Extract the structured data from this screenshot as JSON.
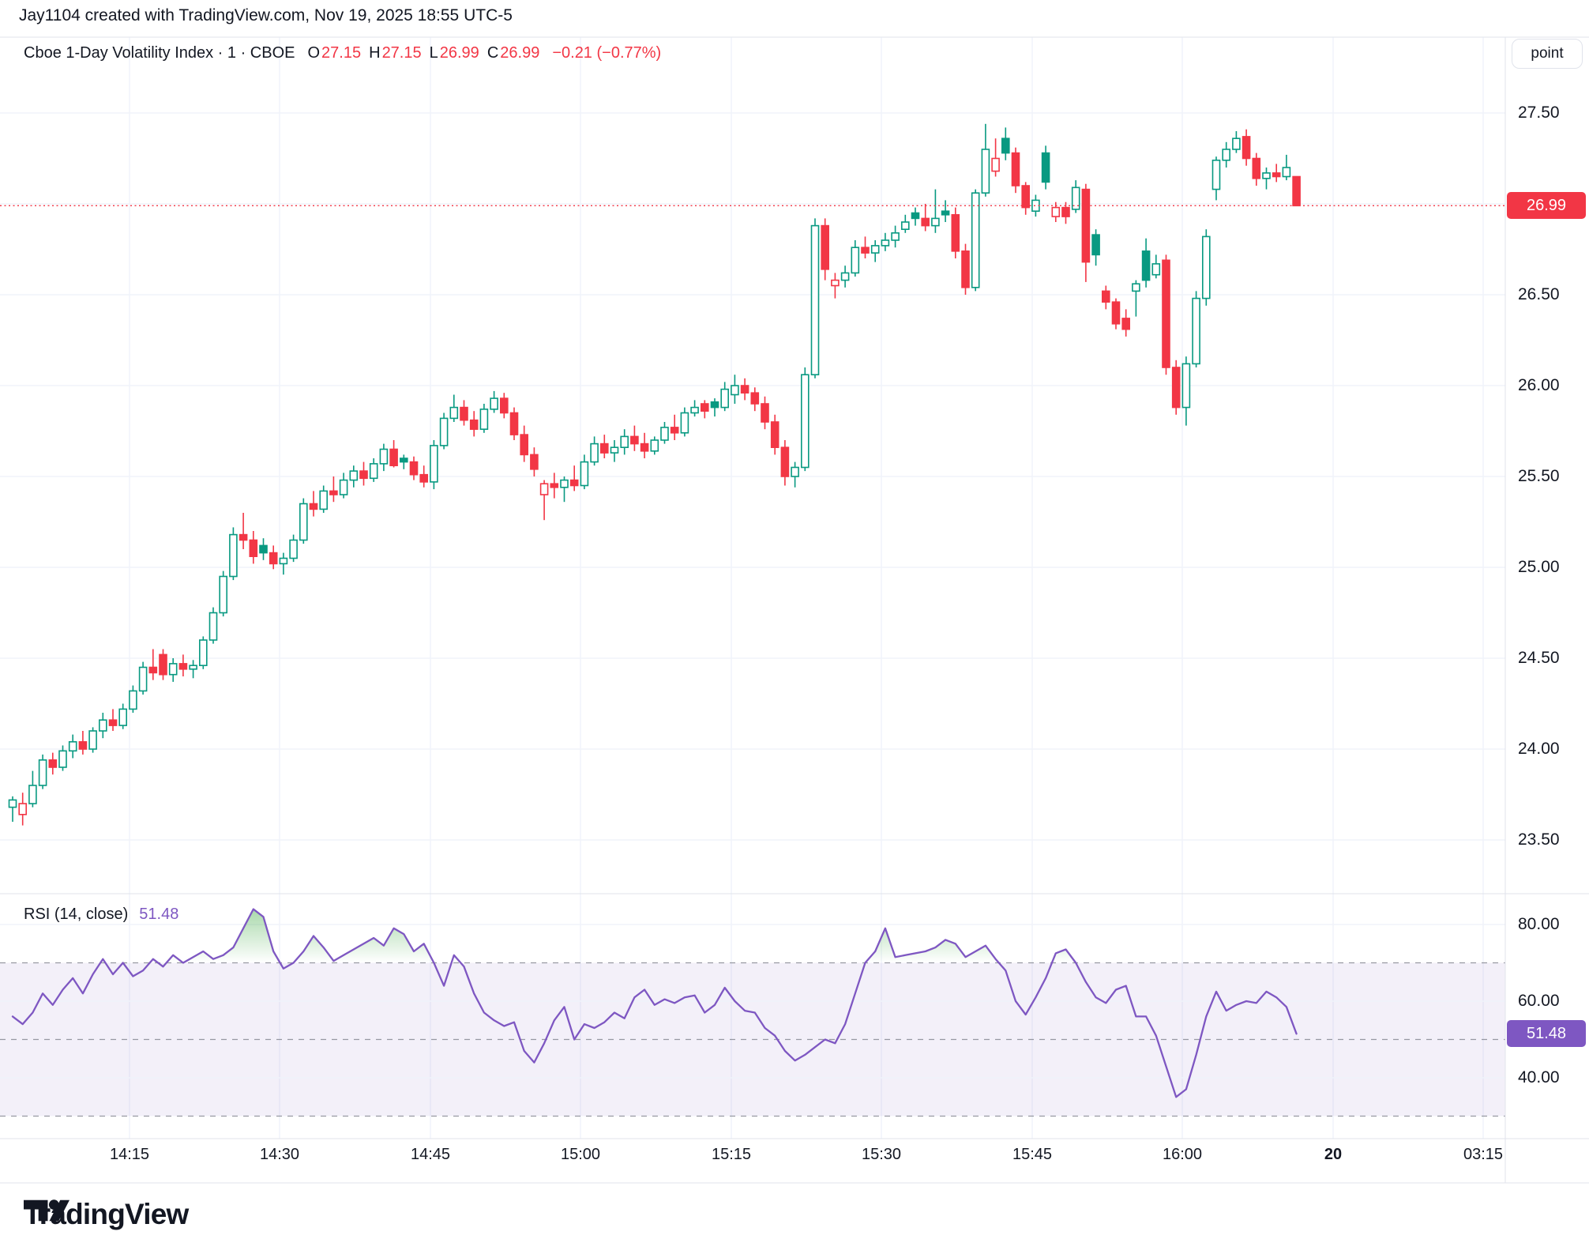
{
  "header": {
    "attribution": "Jay1104 created with TradingView.com, Nov 19, 2025 18:55 UTC-5"
  },
  "legend": {
    "symbol_title": "Cboe 1-Day Volatility Index · 1 · CBOE",
    "o_label": "O",
    "o_value": "27.15",
    "h_label": "H",
    "h_value": "27.15",
    "l_label": "L",
    "l_value": "26.99",
    "c_label": "C",
    "c_value": "26.99",
    "change": "−0.21 (−0.77%)"
  },
  "rsi_legend": {
    "label": "RSI (14, close)",
    "value": "51.48"
  },
  "price_axis": {
    "unit_button": "point",
    "labels": [
      "27.50",
      "26.50",
      "26.00",
      "25.50",
      "25.00",
      "24.50",
      "24.00",
      "23.50"
    ],
    "last_price_badge": "26.99"
  },
  "rsi_axis": {
    "labels": [
      "80.00",
      "60.00",
      "40.00"
    ],
    "value_badge": "51.48"
  },
  "time_axis": {
    "labels": [
      {
        "text": "14:15",
        "bold": false
      },
      {
        "text": "14:30",
        "bold": false
      },
      {
        "text": "14:45",
        "bold": false
      },
      {
        "text": "15:00",
        "bold": false
      },
      {
        "text": "15:15",
        "bold": false
      },
      {
        "text": "15:30",
        "bold": false
      },
      {
        "text": "15:45",
        "bold": false
      },
      {
        "text": "16:00",
        "bold": false
      },
      {
        "text": "20",
        "bold": true
      },
      {
        "text": "03:15",
        "bold": false
      }
    ]
  },
  "footer": {
    "brand": "TradingView"
  },
  "colors": {
    "up": "#089981",
    "down": "#F23645",
    "rsi_line": "#7E57C2",
    "rsi_badge": "#7E57C2",
    "last_price_badge": "#F23645",
    "overbought_fill": "#4CAF50",
    "band_fill": "rgba(126,87,194,0.09)",
    "grid": "#F0F3FA",
    "frame": "#E0E3EB",
    "dashed_level": "#787B86"
  },
  "chart_data": {
    "type": "candlestick",
    "symbol": "Cboe 1-Day Volatility Index",
    "exchange": "CBOE",
    "interval": "1 minute",
    "session_date": "Nov 19, 2025",
    "price_gridlines": [
      27.5,
      27.0,
      26.5,
      26.0,
      25.5,
      25.0,
      24.5,
      24.0,
      23.5
    ],
    "time_gridline_labels": [
      "14:15",
      "14:30",
      "14:45",
      "15:00",
      "15:15",
      "15:30",
      "15:45",
      "16:00",
      "20",
      "03:15"
    ],
    "last_bar": {
      "open": 27.15,
      "high": 27.15,
      "low": 26.99,
      "close": 26.99,
      "change": -0.21,
      "change_pct": -0.77
    },
    "last_price": 26.99,
    "indicator": {
      "name": "RSI",
      "length": 14,
      "source": "close",
      "last_value": 51.48,
      "overbought": 70,
      "middle": 50,
      "oversold": 30,
      "axis_ticks": [
        80,
        60,
        40
      ]
    },
    "bars_format": [
      "open",
      "high",
      "low",
      "close",
      "rsi14"
    ],
    "bars": [
      [
        23.68,
        23.74,
        23.6,
        23.72,
        56
      ],
      [
        23.64,
        23.76,
        23.58,
        23.7,
        54
      ],
      [
        23.7,
        23.88,
        23.68,
        23.8,
        57
      ],
      [
        23.8,
        23.97,
        23.78,
        23.94,
        62
      ],
      [
        23.94,
        23.98,
        23.86,
        23.9,
        59
      ],
      [
        23.9,
        24.02,
        23.88,
        23.99,
        63
      ],
      [
        23.99,
        24.08,
        23.95,
        24.04,
        66
      ],
      [
        24.04,
        24.1,
        23.97,
        24.0,
        62
      ],
      [
        24.0,
        24.12,
        23.98,
        24.1,
        67
      ],
      [
        24.1,
        24.2,
        24.06,
        24.16,
        71
      ],
      [
        24.16,
        24.22,
        24.1,
        24.13,
        67
      ],
      [
        24.13,
        24.25,
        24.11,
        24.22,
        70
      ],
      [
        24.22,
        24.35,
        24.2,
        24.32,
        66.5
      ],
      [
        24.32,
        24.48,
        24.3,
        24.45,
        68
      ],
      [
        24.45,
        24.55,
        24.38,
        24.42,
        71
      ],
      [
        24.52,
        24.55,
        24.38,
        24.41,
        69
      ],
      [
        24.41,
        24.5,
        24.37,
        24.47,
        72
      ],
      [
        24.47,
        24.52,
        24.4,
        24.44,
        70
      ],
      [
        24.44,
        24.49,
        24.39,
        24.46,
        71.5
      ],
      [
        24.46,
        24.62,
        24.44,
        24.6,
        73
      ],
      [
        24.6,
        24.78,
        24.58,
        24.75,
        71
      ],
      [
        24.75,
        24.98,
        24.73,
        24.95,
        72
      ],
      [
        24.95,
        25.22,
        24.93,
        25.18,
        74
      ],
      [
        25.18,
        25.3,
        25.1,
        25.15,
        79
      ],
      [
        25.15,
        25.2,
        25.02,
        25.06,
        84
      ],
      [
        25.12,
        25.16,
        25.04,
        25.08,
        82
      ],
      [
        25.08,
        25.12,
        24.99,
        25.02,
        73
      ],
      [
        25.02,
        25.08,
        24.96,
        25.05,
        68.5
      ],
      [
        25.05,
        25.18,
        25.03,
        25.15,
        70
      ],
      [
        25.15,
        25.38,
        25.13,
        25.35,
        73
      ],
      [
        25.35,
        25.42,
        25.28,
        25.32,
        77
      ],
      [
        25.32,
        25.45,
        25.3,
        25.42,
        74
      ],
      [
        25.42,
        25.5,
        25.36,
        25.4,
        70.5
      ],
      [
        25.4,
        25.52,
        25.38,
        25.48,
        72
      ],
      [
        25.48,
        25.56,
        25.44,
        25.53,
        73.5
      ],
      [
        25.53,
        25.58,
        25.45,
        25.49,
        75
      ],
      [
        25.49,
        25.6,
        25.47,
        25.57,
        76.5
      ],
      [
        25.57,
        25.68,
        25.53,
        25.65,
        74.5
      ],
      [
        25.65,
        25.7,
        25.55,
        25.56,
        79
      ],
      [
        25.6,
        25.62,
        25.54,
        25.58,
        77.5
      ],
      [
        25.58,
        25.61,
        25.48,
        25.51,
        73
      ],
      [
        25.51,
        25.56,
        25.44,
        25.47,
        75
      ],
      [
        25.47,
        25.7,
        25.43,
        25.67,
        70
      ],
      [
        25.67,
        25.85,
        25.65,
        25.82,
        64
      ],
      [
        25.82,
        25.95,
        25.8,
        25.88,
        72
      ],
      [
        25.88,
        25.92,
        25.78,
        25.81,
        69
      ],
      [
        25.81,
        25.86,
        25.72,
        25.76,
        62
      ],
      [
        25.76,
        25.9,
        25.74,
        25.87,
        57
      ],
      [
        25.87,
        25.97,
        25.85,
        25.93,
        55
      ],
      [
        25.93,
        25.96,
        25.82,
        25.85,
        53.5
      ],
      [
        25.85,
        25.88,
        25.7,
        25.73,
        54.5
      ],
      [
        25.73,
        25.78,
        25.58,
        25.62,
        47
      ],
      [
        25.62,
        25.66,
        25.5,
        25.54,
        44
      ],
      [
        25.4,
        25.48,
        25.26,
        25.46,
        49
      ],
      [
        25.46,
        25.52,
        25.38,
        25.44,
        55
      ],
      [
        25.44,
        25.5,
        25.36,
        25.48,
        58.5
      ],
      [
        25.48,
        25.56,
        25.42,
        25.45,
        50
      ],
      [
        25.45,
        25.62,
        25.43,
        25.58,
        54
      ],
      [
        25.58,
        25.72,
        25.56,
        25.68,
        53
      ],
      [
        25.68,
        25.73,
        25.6,
        25.63,
        54.5
      ],
      [
        25.63,
        25.7,
        25.58,
        25.66,
        57
      ],
      [
        25.66,
        25.76,
        25.62,
        25.72,
        55.5
      ],
      [
        25.72,
        25.78,
        25.64,
        25.68,
        61
      ],
      [
        25.68,
        25.74,
        25.6,
        25.64,
        63
      ],
      [
        25.64,
        25.72,
        25.62,
        25.7,
        59
      ],
      [
        25.7,
        25.8,
        25.68,
        25.77,
        60.5
      ],
      [
        25.77,
        25.84,
        25.7,
        25.74,
        59.5
      ],
      [
        25.74,
        25.88,
        25.72,
        25.85,
        61
      ],
      [
        25.85,
        25.92,
        25.83,
        25.88,
        61.5
      ],
      [
        25.9,
        25.92,
        25.82,
        25.86,
        57
      ],
      [
        25.91,
        25.93,
        25.83,
        25.88,
        59
      ],
      [
        25.88,
        26.02,
        25.86,
        25.98,
        63.5
      ],
      [
        25.95,
        26.06,
        25.9,
        26.0,
        60
      ],
      [
        26.0,
        26.04,
        25.92,
        25.96,
        57.5
      ],
      [
        25.96,
        25.99,
        25.86,
        25.9,
        57
      ],
      [
        25.9,
        25.94,
        25.76,
        25.8,
        53
      ],
      [
        25.8,
        25.84,
        25.62,
        25.66,
        51
      ],
      [
        25.66,
        25.7,
        25.45,
        25.5,
        47
      ],
      [
        25.5,
        25.58,
        25.44,
        25.55,
        44.5
      ],
      [
        25.55,
        26.1,
        25.53,
        26.06,
        46
      ],
      [
        26.06,
        26.92,
        26.04,
        26.88,
        48
      ],
      [
        26.88,
        26.92,
        26.58,
        26.64,
        50
      ],
      [
        26.55,
        26.62,
        26.48,
        26.58,
        49
      ],
      [
        26.58,
        26.66,
        26.54,
        26.62,
        54
      ],
      [
        26.62,
        26.8,
        26.6,
        26.76,
        62
      ],
      [
        26.76,
        26.82,
        26.7,
        26.73,
        70
      ],
      [
        26.73,
        26.8,
        26.68,
        26.77,
        73
      ],
      [
        26.77,
        26.84,
        26.74,
        26.8,
        79
      ],
      [
        26.8,
        26.88,
        26.76,
        26.84,
        71.5
      ],
      [
        26.86,
        26.94,
        26.84,
        26.9,
        72
      ],
      [
        26.95,
        26.98,
        26.88,
        26.92,
        72.5
      ],
      [
        26.92,
        27.0,
        26.85,
        26.88,
        73
      ],
      [
        26.88,
        27.08,
        26.84,
        26.92,
        74
      ],
      [
        26.96,
        27.02,
        26.9,
        26.94,
        76
      ],
      [
        26.94,
        26.98,
        26.7,
        26.74,
        75
      ],
      [
        26.74,
        26.78,
        26.5,
        26.54,
        71.5
      ],
      [
        26.54,
        27.08,
        26.52,
        27.06,
        73
      ],
      [
        27.06,
        27.44,
        27.04,
        27.3,
        74.5
      ],
      [
        27.18,
        27.36,
        27.15,
        27.25,
        71
      ],
      [
        27.36,
        27.42,
        27.24,
        27.28,
        68
      ],
      [
        27.28,
        27.31,
        27.06,
        27.1,
        60
      ],
      [
        27.1,
        27.12,
        26.94,
        26.98,
        56.5
      ],
      [
        26.96,
        27.05,
        26.93,
        27.02,
        61
      ],
      [
        27.28,
        27.32,
        27.08,
        27.12,
        66
      ],
      [
        26.93,
        27.01,
        26.9,
        26.98,
        72.5
      ],
      [
        26.98,
        27.01,
        26.89,
        26.93,
        73.5
      ],
      [
        26.97,
        27.13,
        26.95,
        27.09,
        70
      ],
      [
        27.08,
        27.11,
        26.57,
        26.68,
        65
      ],
      [
        26.83,
        26.86,
        26.66,
        26.72,
        61
      ],
      [
        26.52,
        26.55,
        26.42,
        26.46,
        59.5
      ],
      [
        26.46,
        26.48,
        26.31,
        26.34,
        63
      ],
      [
        26.37,
        26.42,
        26.27,
        26.31,
        64
      ],
      [
        26.52,
        26.58,
        26.38,
        26.56,
        56
      ],
      [
        26.74,
        26.81,
        26.54,
        26.58,
        56
      ],
      [
        26.61,
        26.72,
        26.59,
        26.67,
        51
      ],
      [
        26.69,
        26.72,
        26.06,
        26.1,
        43
      ],
      [
        26.1,
        26.14,
        25.84,
        25.88,
        35
      ],
      [
        25.88,
        26.16,
        25.78,
        26.12,
        37
      ],
      [
        26.12,
        26.52,
        26.1,
        26.48,
        46
      ],
      [
        26.48,
        26.86,
        26.44,
        26.82,
        56
      ],
      [
        27.08,
        27.26,
        27.02,
        27.24,
        62.5
      ],
      [
        27.24,
        27.34,
        27.2,
        27.3,
        57.5
      ],
      [
        27.3,
        27.4,
        27.28,
        27.36,
        59
      ],
      [
        27.37,
        27.41,
        27.21,
        27.25,
        60
      ],
      [
        27.25,
        27.28,
        27.1,
        27.14,
        59.5
      ],
      [
        27.14,
        27.2,
        27.08,
        27.17,
        62.5
      ],
      [
        27.17,
        27.22,
        27.12,
        27.15,
        61
      ],
      [
        27.15,
        27.27,
        27.13,
        27.2,
        58.5
      ],
      [
        27.15,
        27.15,
        26.99,
        26.99,
        51.48
      ]
    ]
  }
}
